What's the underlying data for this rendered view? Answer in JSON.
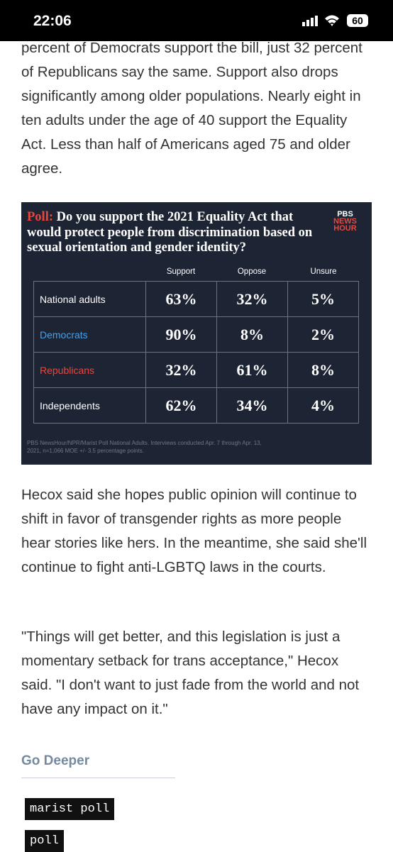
{
  "status_bar": {
    "time": "22:06",
    "battery": "60"
  },
  "article": {
    "paragraphs": [
      "percent of Democrats support the bill, just 32 percent of Republicans say the same. Support also drops significantly among older populations. Nearly eight in ten adults under the age of 40 support the Equality Act. Less than half of Americans aged 75 and older agree.",
      "Hecox said she hopes public opinion will continue to shift in favor of transgender rights as more people hear stories like hers. In the meantime, she said she'll continue to fight anti-LGBTQ laws in the courts.",
      "\"Things will get better, and this legislation is just a momentary setback for trans acceptance,\" Hecox said. \"I don't want to just fade from the world and not have any impact on it.\""
    ]
  },
  "poll": {
    "label": "Poll:",
    "question": "Do you support the 2021 Equality Act that would protect people from discrimination based on sexual orientation and gender identity?",
    "logo": [
      "PBS",
      "NEWS",
      "HOUR"
    ],
    "columns": [
      "Support",
      "Oppose",
      "Unsure"
    ],
    "rows": [
      {
        "label": "National adults",
        "values": [
          "63%",
          "32%",
          "5%"
        ]
      },
      {
        "label": "Democrats",
        "values": [
          "90%",
          "8%",
          "2%"
        ]
      },
      {
        "label": "Republicans",
        "values": [
          "32%",
          "61%",
          "8%"
        ]
      },
      {
        "label": "Independents",
        "values": [
          "62%",
          "34%",
          "4%"
        ]
      }
    ],
    "footnote": "PBS NewsHour/NPR/Marist Poll National Adults. Interviews conducted Apr. 7 through Apr. 13, 2021, n=1,066 MOE +/- 3.5 percentage points."
  },
  "go_deeper": {
    "title": "Go Deeper",
    "tags": [
      "marist poll",
      "poll"
    ]
  }
}
